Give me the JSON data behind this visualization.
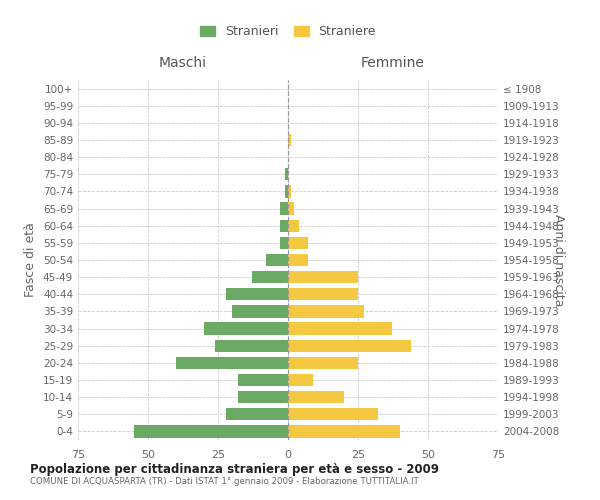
{
  "age_groups": [
    "0-4",
    "5-9",
    "10-14",
    "15-19",
    "20-24",
    "25-29",
    "30-34",
    "35-39",
    "40-44",
    "45-49",
    "50-54",
    "55-59",
    "60-64",
    "65-69",
    "70-74",
    "75-79",
    "80-84",
    "85-89",
    "90-94",
    "95-99",
    "100+"
  ],
  "birth_years": [
    "2004-2008",
    "1999-2003",
    "1994-1998",
    "1989-1993",
    "1984-1988",
    "1979-1983",
    "1974-1978",
    "1969-1973",
    "1964-1968",
    "1959-1963",
    "1954-1958",
    "1949-1953",
    "1944-1948",
    "1939-1943",
    "1934-1938",
    "1929-1933",
    "1924-1928",
    "1919-1923",
    "1914-1918",
    "1909-1913",
    "≤ 1908"
  ],
  "maschi": [
    55,
    22,
    18,
    18,
    40,
    26,
    30,
    20,
    22,
    13,
    8,
    3,
    3,
    3,
    1,
    1,
    0,
    0,
    0,
    0,
    0
  ],
  "femmine": [
    40,
    32,
    20,
    9,
    25,
    44,
    37,
    27,
    25,
    25,
    7,
    7,
    4,
    2,
    1,
    0,
    0,
    1,
    0,
    0,
    0
  ],
  "male_color": "#6aaa64",
  "female_color": "#f5c842",
  "title": "Popolazione per cittadinanza straniera per età e sesso - 2009",
  "subtitle": "COMUNE DI ACQUASPARTA (TR) - Dati ISTAT 1° gennaio 2009 - Elaborazione TUTTITALIA.IT",
  "xlabel_left": "Maschi",
  "xlabel_right": "Femmine",
  "ylabel_left": "Fasce di età",
  "ylabel_right": "Anni di nascita",
  "legend_male": "Stranieri",
  "legend_female": "Straniere",
  "xlim": 75,
  "background_color": "#ffffff"
}
